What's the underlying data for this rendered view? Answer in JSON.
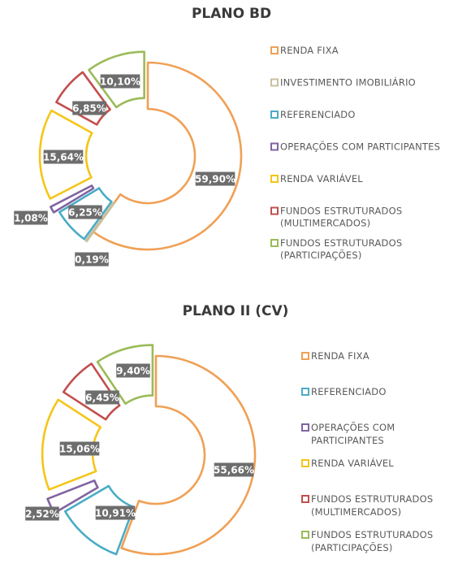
{
  "chart_data": [
    {
      "type": "pie",
      "title": "PLANO BD",
      "categories": [
        "RENDA FIXA",
        "INVESTIMENTO IMOBILIÁRIO",
        "REFERENCIADO",
        "OPERAÇÕES COM PARTICIPANTES",
        "RENDA VARIÁVEL",
        "FUNDOS ESTRUTURADOS (MULTIMERCADOS)",
        "FUNDOS ESTRUTURADOS (PARTICIPAÇÕES)"
      ],
      "legend_lines": [
        [
          "RENDA FIXA"
        ],
        [
          "INVESTIMENTO IMOBILIÁRIO"
        ],
        [
          "REFERENCIADO"
        ],
        [
          "OPERAÇÕES COM PARTICIPANTES"
        ],
        [
          "RENDA VARIÁVEL"
        ],
        [
          "FUNDOS ESTRUTURADOS",
          "(MULTIMERCADOS)"
        ],
        [
          "FUNDOS ESTRUTURADOS",
          "(PARTICIPAÇÕES)"
        ]
      ],
      "values": [
        59.9,
        0.19,
        6.25,
        1.08,
        15.64,
        6.85,
        10.1
      ],
      "labels": [
        "59,90%",
        "0,19%",
        "6,25%",
        "1,08%",
        "15,64%",
        "6,85%",
        "10,10%"
      ],
      "colors": [
        "#f0a055",
        "#c8c0a0",
        "#4aacc6",
        "#8064a2",
        "#f5c518",
        "#c0504d",
        "#9bbb59"
      ],
      "legend_position": "right"
    },
    {
      "type": "pie",
      "title": "PLANO II (CV)",
      "categories": [
        "RENDA FIXA",
        "REFERENCIADO",
        "OPERAÇÕES COM PARTICIPANTES",
        "RENDA VARIÁVEL",
        "FUNDOS ESTRUTURADOS (MULTIMERCADOS)",
        "FUNDOS ESTRUTURADOS (PARTICIPAÇÕES)"
      ],
      "legend_lines": [
        [
          "RENDA FIXA"
        ],
        [
          "REFERENCIADO"
        ],
        [
          "OPERAÇÕES COM",
          "PARTICIPANTES"
        ],
        [
          "RENDA VARIÁVEL"
        ],
        [
          "FUNDOS ESTRUTURADOS",
          "(MULTIMERCADOS)"
        ],
        [
          "FUNDOS ESTRUTURADOS",
          "(PARTICIPAÇÕES)"
        ]
      ],
      "values": [
        55.66,
        10.91,
        2.52,
        15.06,
        6.45,
        9.4
      ],
      "labels": [
        "55,66%",
        "10,91%",
        "2,52%",
        "15,06%",
        "6,45%",
        "9,40%"
      ],
      "colors": [
        "#f0a055",
        "#4aacc6",
        "#8064a2",
        "#f5c518",
        "#c0504d",
        "#9bbb59"
      ],
      "legend_position": "right"
    }
  ]
}
